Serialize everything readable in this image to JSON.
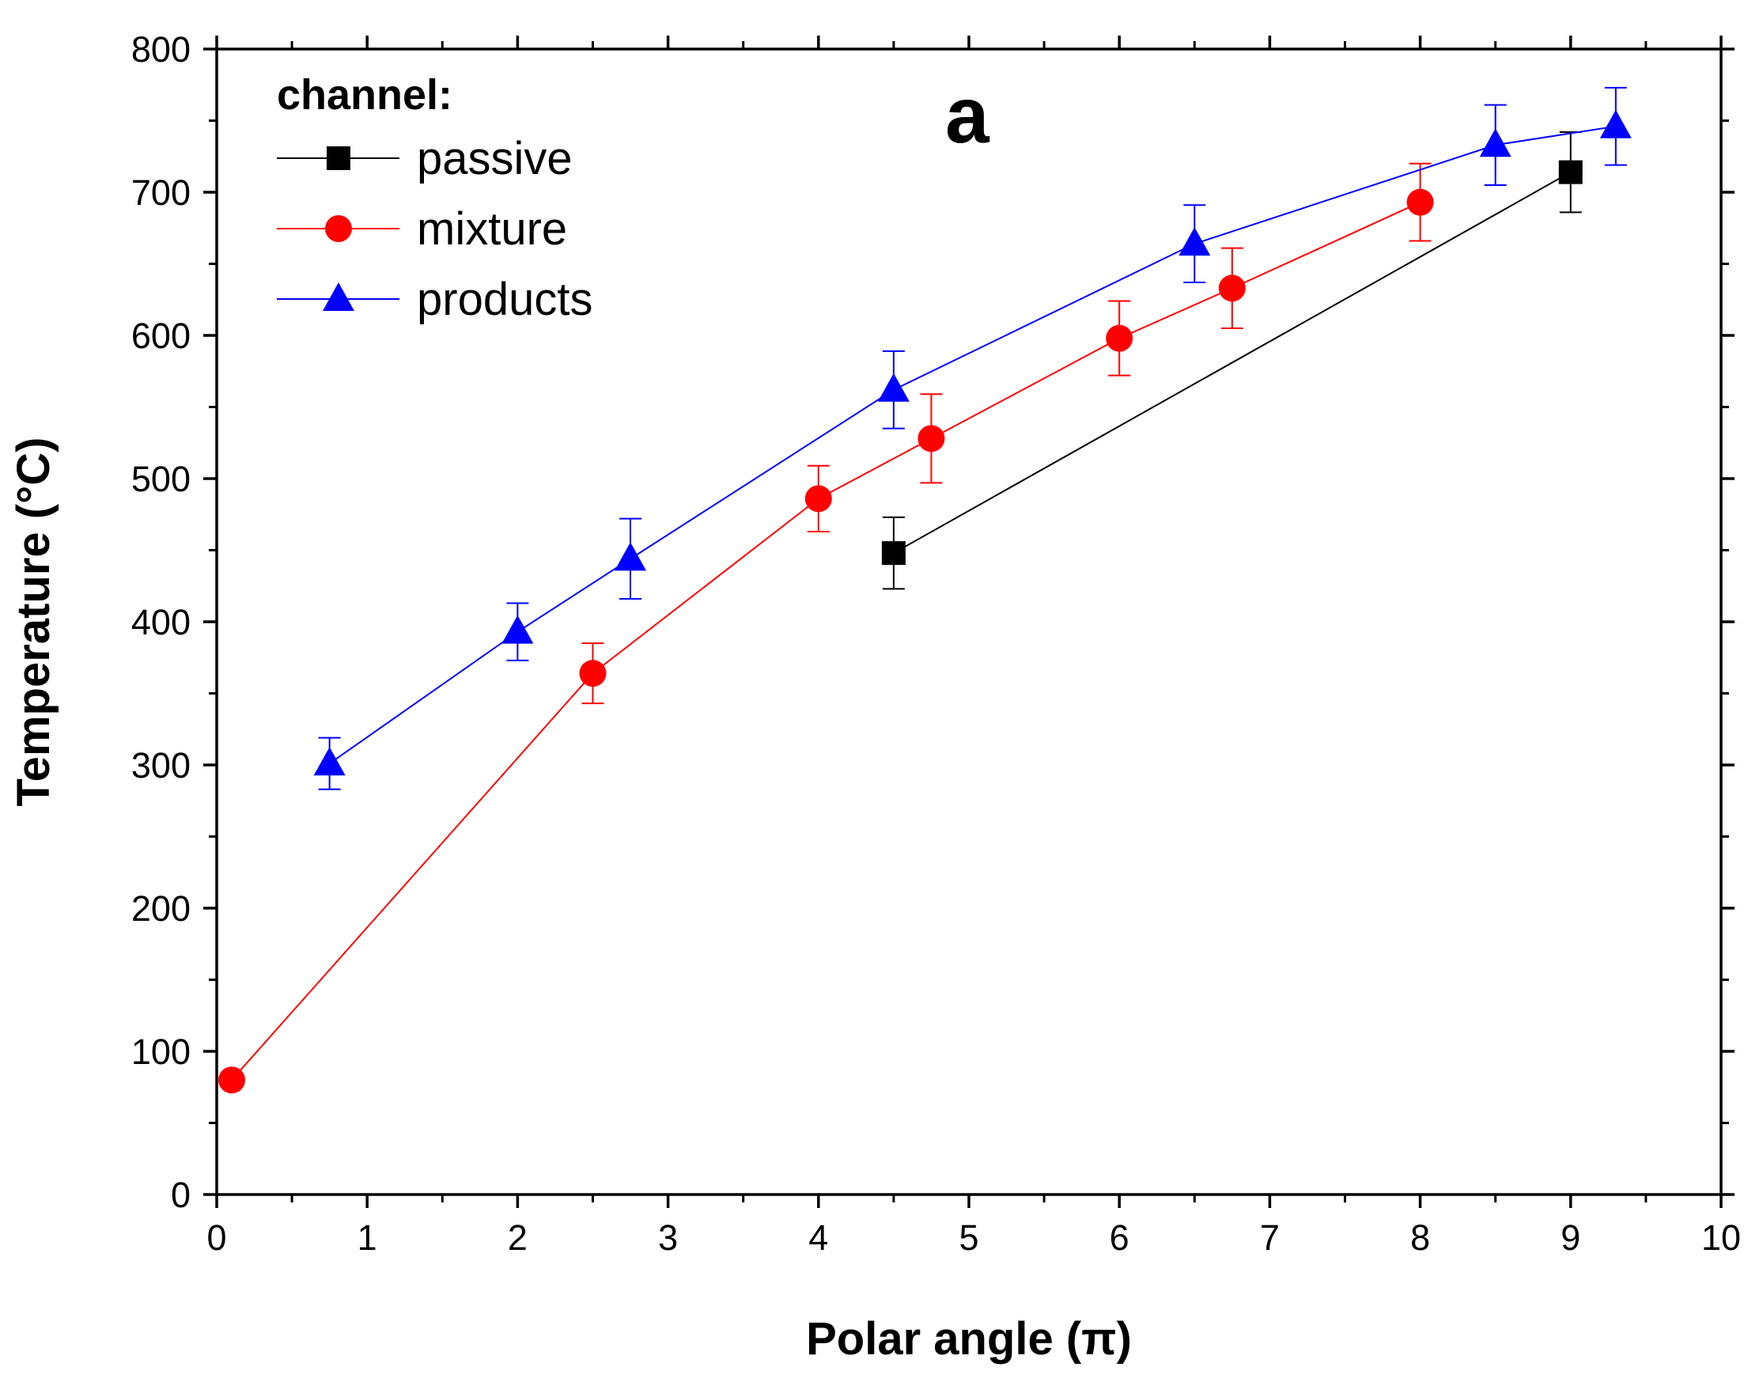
{
  "chart_data": {
    "type": "scatter",
    "panel_label": "a",
    "xlabel": "Polar angle (π)",
    "ylabel": "Temperature (°C)",
    "xlim": [
      0,
      10
    ],
    "ylim": [
      0,
      800
    ],
    "x_major_ticks": [
      0,
      1,
      2,
      3,
      4,
      5,
      6,
      7,
      8,
      9,
      10
    ],
    "x_minor_step": 0.5,
    "y_major_ticks": [
      0,
      100,
      200,
      300,
      400,
      500,
      600,
      700,
      800
    ],
    "y_minor_step": 50,
    "x_tick_labels": [
      "0",
      "1",
      "2",
      "3",
      "4",
      "5",
      "6",
      "7",
      "8",
      "9",
      "10"
    ],
    "y_tick_labels": [
      "0",
      "100",
      "200",
      "300",
      "400",
      "500",
      "600",
      "700",
      "800"
    ],
    "grid": false,
    "legend": {
      "title": "channel:",
      "position": "top-left"
    },
    "series": [
      {
        "name": "passive",
        "color": "#000000",
        "marker": "square",
        "points": [
          {
            "x": 4.5,
            "y": 448,
            "err": 25
          },
          {
            "x": 9.0,
            "y": 714,
            "err": 28
          }
        ]
      },
      {
        "name": "mixture",
        "color": "#ff0000",
        "marker": "circle",
        "points": [
          {
            "x": 0.1,
            "y": 80,
            "err": 0
          },
          {
            "x": 2.5,
            "y": 364,
            "err": 21
          },
          {
            "x": 4.0,
            "y": 486,
            "err": 23
          },
          {
            "x": 4.75,
            "y": 528,
            "err": 31
          },
          {
            "x": 6.0,
            "y": 598,
            "err": 26
          },
          {
            "x": 6.75,
            "y": 633,
            "err": 28
          },
          {
            "x": 8.0,
            "y": 693,
            "err": 27
          }
        ]
      },
      {
        "name": "products",
        "color": "#0000ff",
        "marker": "triangle",
        "points": [
          {
            "x": 0.75,
            "y": 301,
            "err": 18
          },
          {
            "x": 2.0,
            "y": 393,
            "err": 20
          },
          {
            "x": 2.75,
            "y": 444,
            "err": 28
          },
          {
            "x": 4.5,
            "y": 562,
            "err": 27
          },
          {
            "x": 6.5,
            "y": 664,
            "err": 27
          },
          {
            "x": 8.5,
            "y": 733,
            "err": 28
          },
          {
            "x": 9.3,
            "y": 746,
            "err": 27
          }
        ]
      }
    ]
  }
}
